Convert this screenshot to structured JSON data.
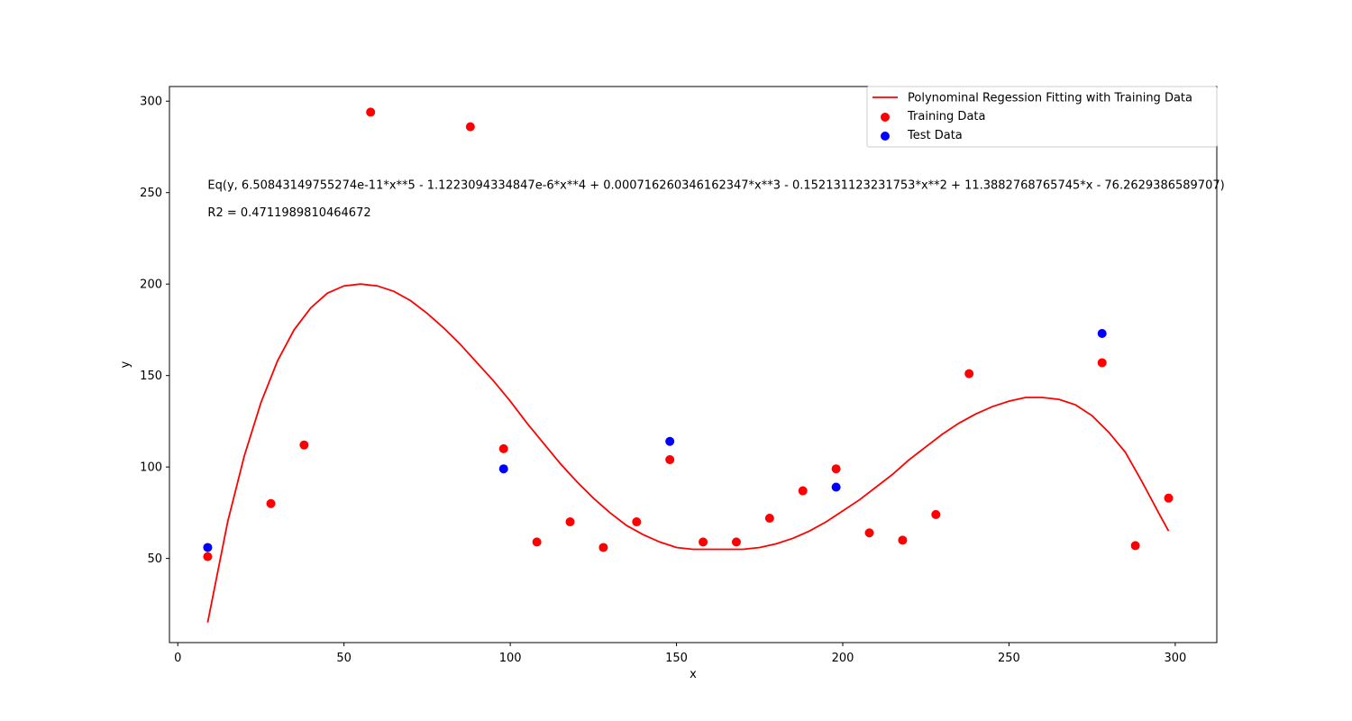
{
  "chart_data": {
    "type": "scatter",
    "title": "",
    "xlabel": "x",
    "ylabel": "y",
    "xlim": [
      -2.5,
      312.5
    ],
    "ylim": [
      4,
      308
    ],
    "xticks": [
      0,
      50,
      100,
      150,
      200,
      250,
      300
    ],
    "yticks": [
      50,
      100,
      150,
      200,
      250,
      300
    ],
    "grid": false,
    "legend_position": "top-right",
    "annotations": [
      {
        "text": "Eq(y, 6.50843149755274e-11*x**5 - 1.1223094334847e-6*x**4 + 0.000716260346162347*x**3 - 0.152131123231753*x**2 + 11.3882768765745*x - 76.2629386589707)",
        "x": 9,
        "y": 252
      },
      {
        "text": "R2 = 0.4711989810464672",
        "x": 9,
        "y": 237
      }
    ],
    "series": [
      {
        "name": "Polynominal Regession Fitting with Training Data",
        "kind": "line",
        "color": "#ff0000",
        "x": [
          9,
          15,
          20,
          25,
          30,
          35,
          40,
          45,
          50,
          55,
          60,
          65,
          70,
          75,
          80,
          85,
          90,
          95,
          100,
          105,
          110,
          115,
          120,
          125,
          130,
          135,
          140,
          145,
          150,
          155,
          160,
          165,
          170,
          175,
          180,
          185,
          190,
          195,
          200,
          205,
          210,
          215,
          220,
          225,
          230,
          235,
          240,
          245,
          250,
          255,
          260,
          265,
          270,
          275,
          280,
          285,
          290,
          295,
          298
        ],
        "y": [
          15,
          70,
          106,
          135,
          158,
          175,
          187,
          195,
          199,
          200,
          199,
          196,
          191,
          184,
          176,
          167,
          157,
          147,
          136,
          124,
          113,
          102,
          92,
          83,
          75,
          68,
          63,
          59,
          56,
          55,
          55,
          55,
          55,
          56,
          58,
          61,
          65,
          70,
          76,
          82,
          89,
          96,
          104,
          111,
          118,
          124,
          129,
          133,
          136,
          138,
          138,
          137,
          134,
          128,
          119,
          108,
          92,
          75,
          65
        ]
      },
      {
        "name": "Training Data",
        "kind": "scatter",
        "color": "#ff0000",
        "x": [
          9,
          28,
          38,
          58,
          88,
          98,
          108,
          118,
          128,
          138,
          148,
          158,
          168,
          178,
          188,
          198,
          208,
          218,
          228,
          238,
          278,
          288,
          298
        ],
        "y": [
          51,
          80,
          112,
          294,
          286,
          110,
          59,
          70,
          56,
          70,
          104,
          59,
          59,
          72,
          87,
          99,
          64,
          60,
          74,
          151,
          157,
          57,
          83
        ]
      },
      {
        "name": "Test Data",
        "kind": "scatter",
        "color": "#0000ff",
        "x": [
          9,
          98,
          148,
          198,
          278
        ],
        "y": [
          56,
          99,
          114,
          89,
          173
        ]
      }
    ]
  }
}
